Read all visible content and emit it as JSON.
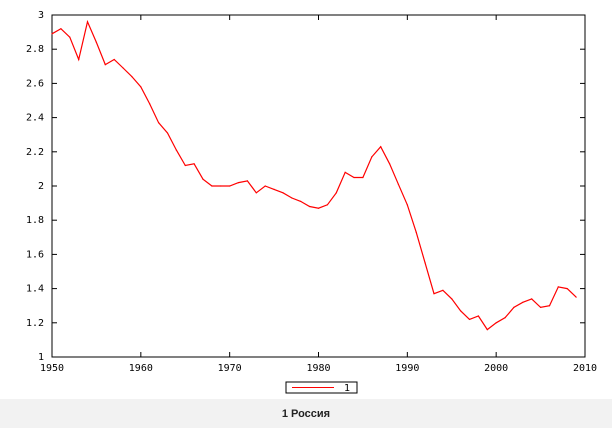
{
  "caption": "1 Россия",
  "colors": {
    "series": "#ff0000",
    "axis": "#000000",
    "background": "#ffffff",
    "page": "#f2f2f2"
  },
  "chart_data": {
    "type": "line",
    "title": "",
    "xlabel": "",
    "ylabel": "",
    "xlim": [
      1950,
      2010
    ],
    "ylim": [
      1,
      3
    ],
    "grid": false,
    "legend_position": "bottom-center",
    "x_ticks": [
      "1950",
      "1960",
      "1970",
      "1980",
      "1990",
      "2000",
      "2010"
    ],
    "y_ticks": [
      "1",
      "1.2",
      "1.4",
      "1.6",
      "1.8",
      "2",
      "2.2",
      "2.4",
      "2.6",
      "2.8",
      "3"
    ],
    "series": [
      {
        "name": "1",
        "x": [
          1950,
          1951,
          1952,
          1953,
          1954,
          1955,
          1956,
          1957,
          1958,
          1959,
          1960,
          1961,
          1962,
          1963,
          1964,
          1965,
          1966,
          1967,
          1968,
          1969,
          1970,
          1971,
          1972,
          1973,
          1974,
          1975,
          1976,
          1977,
          1978,
          1979,
          1980,
          1981,
          1982,
          1983,
          1984,
          1985,
          1986,
          1987,
          1988,
          1989,
          1990,
          1991,
          1992,
          1993,
          1994,
          1995,
          1996,
          1997,
          1998,
          1999,
          2000,
          2001,
          2002,
          2003,
          2004,
          2005,
          2006,
          2007,
          2008,
          2009
        ],
        "y": [
          2.89,
          2.92,
          2.87,
          2.74,
          2.96,
          2.84,
          2.71,
          2.74,
          2.69,
          2.64,
          2.58,
          2.48,
          2.37,
          2.31,
          2.21,
          2.12,
          2.13,
          2.04,
          2.0,
          2.0,
          2.0,
          2.02,
          2.03,
          1.96,
          2.0,
          1.98,
          1.96,
          1.93,
          1.91,
          1.88,
          1.87,
          1.89,
          1.96,
          2.08,
          2.05,
          2.05,
          2.17,
          2.23,
          2.13,
          2.01,
          1.89,
          1.73,
          1.55,
          1.37,
          1.39,
          1.34,
          1.27,
          1.22,
          1.24,
          1.16,
          1.2,
          1.23,
          1.29,
          1.32,
          1.34,
          1.29,
          1.3,
          1.41,
          1.4,
          1.35
        ]
      }
    ]
  }
}
